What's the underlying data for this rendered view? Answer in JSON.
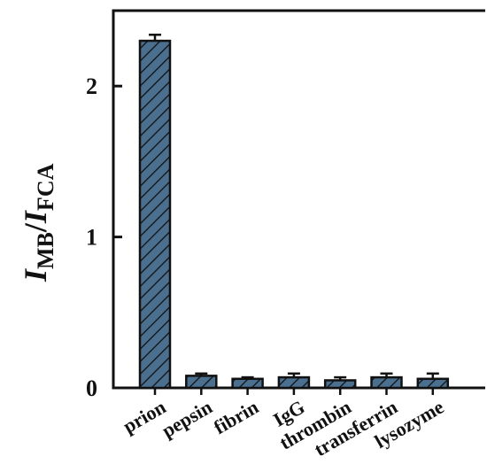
{
  "chart_data": {
    "type": "bar",
    "categories": [
      "prion",
      "pepsin",
      "fibrin",
      "IgG",
      "thrombin",
      "transferrin",
      "lysozyme"
    ],
    "values": [
      2.3,
      0.08,
      0.06,
      0.07,
      0.05,
      0.07,
      0.06
    ],
    "errors": [
      0.04,
      0.015,
      0.01,
      0.025,
      0.02,
      0.025,
      0.035
    ],
    "ylim": [
      0,
      2.5
    ],
    "yticks": [
      0,
      1,
      2
    ],
    "ytick_labels": [
      "0",
      "1",
      "2"
    ],
    "ylabel": {
      "part1_main": "I",
      "part1_sub": "MB",
      "separator": "/",
      "part2_main": "I",
      "part2_sub": "FCA"
    },
    "xlabel": "",
    "grid": false,
    "bar_color": "#4a6f8f",
    "bar_pattern": "diagonal-hatch"
  }
}
